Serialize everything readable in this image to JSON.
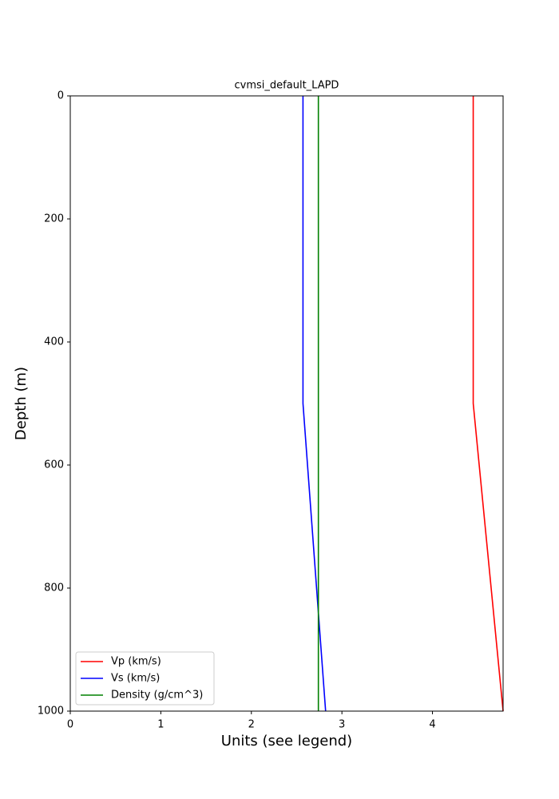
{
  "chart_data": {
    "type": "line",
    "title": "cvmsi_default_LAPD",
    "x_label": "Units (see legend)",
    "y_label": "Depth (m)",
    "depth": [
      0,
      500,
      1000
    ],
    "series": [
      {
        "name": "Vp (km/s)",
        "color": "#ff0000",
        "values": [
          4.45,
          4.45,
          4.78
        ]
      },
      {
        "name": "Vs (km/s)",
        "color": "#0000ff",
        "values": [
          2.57,
          2.57,
          2.82
        ]
      },
      {
        "name": "Density (g/cm^3)",
        "color": "#008000",
        "values": [
          2.74,
          2.74,
          2.74
        ]
      }
    ],
    "xlim": [
      0,
      4.78
    ],
    "xticks": [
      0,
      1,
      2,
      3,
      4
    ],
    "ylim": [
      1000,
      0
    ],
    "yticks": [
      0,
      200,
      400,
      600,
      800,
      1000
    ],
    "legend": "lower left",
    "grid": false
  }
}
